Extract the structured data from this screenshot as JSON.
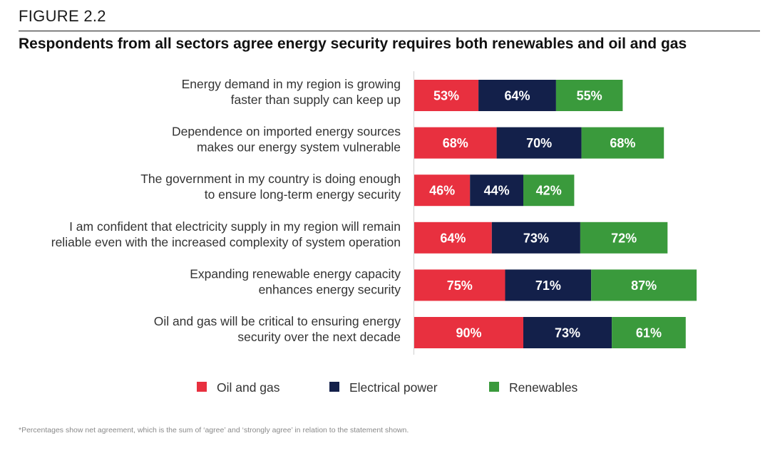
{
  "figure_label": "FIGURE 2.2",
  "title": "Respondents from all sectors agree energy security requires both renewables and oil and gas",
  "footnote": "*Percentages show net agreement, which is the sum of ‘agree’ and ‘strongly agree’ in relation to the statement shown.",
  "chart_data": {
    "type": "bar",
    "orientation": "horizontal",
    "stacked": true,
    "categories": [
      [
        "Energy demand in my region is growing",
        "faster than supply can keep up"
      ],
      [
        "Dependence on imported energy sources",
        "makes our energy system vulnerable"
      ],
      [
        "The government in my country is doing enough",
        "to ensure long-term energy security"
      ],
      [
        "I am confident that electricity supply in my region will remain",
        "reliable even with the increased complexity of system operation"
      ],
      [
        "Expanding renewable energy capacity",
        "enhances energy security"
      ],
      [
        "Oil and gas will be critical to ensuring energy",
        "security over the next decade"
      ]
    ],
    "series": [
      {
        "name": "Oil and gas",
        "color": "#e8303f",
        "values": [
          53,
          68,
          46,
          64,
          75,
          90
        ]
      },
      {
        "name": "Electrical power",
        "color": "#13204a",
        "values": [
          64,
          70,
          44,
          73,
          71,
          73
        ]
      },
      {
        "name": "Renewables",
        "color": "#3a9a3c",
        "values": [
          55,
          68,
          42,
          72,
          87,
          61
        ]
      }
    ],
    "value_suffix": "%",
    "legend_position": "bottom-center",
    "grid": false
  }
}
